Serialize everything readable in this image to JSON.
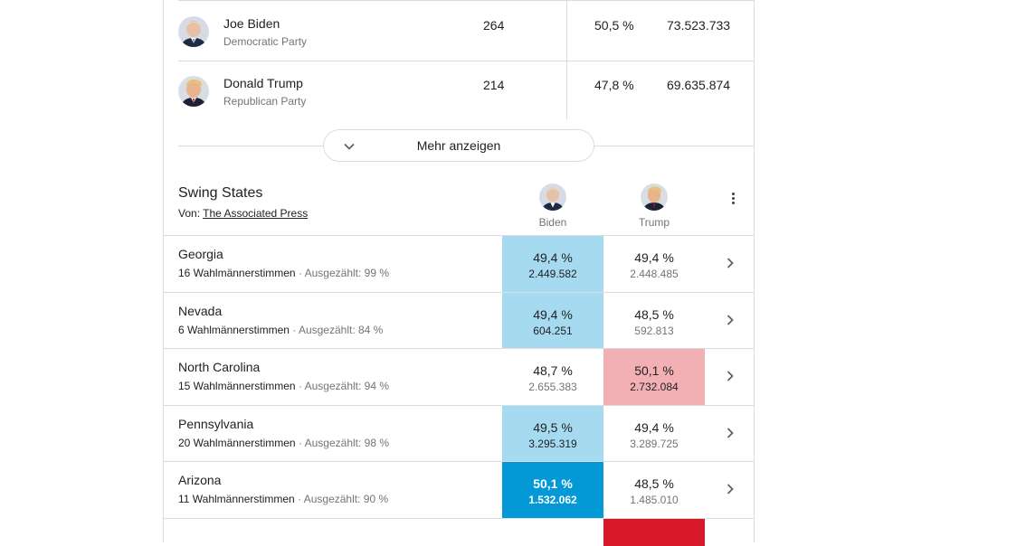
{
  "candidates": [
    {
      "name": "Joe Biden",
      "party": "Democratic Party",
      "electoral": "264",
      "percent": "50,5 %",
      "votes": "73.523.733",
      "color": "#1a73e8"
    },
    {
      "name": "Donald Trump",
      "party": "Republican Party",
      "electoral": "214",
      "percent": "47,8 %",
      "votes": "69.635.874",
      "color": "#d7192a"
    }
  ],
  "more_button": {
    "label": "Mehr anzeigen",
    "icon": "chevron-down-icon"
  },
  "swing": {
    "title": "Swing States",
    "source_prefix": "Von: ",
    "source_link": "The Associated Press",
    "col_biden": "Biden",
    "col_trump": "Trump",
    "menu_icon": "more-vert-icon",
    "states": [
      {
        "name": "Georgia",
        "electors": "16 Wahlmännerstimmen",
        "sep": " · ",
        "counted": "Ausgezählt: 99 %",
        "biden_pct": "49,4 %",
        "biden_votes": "2.449.582",
        "trump_pct": "49,4 %",
        "trump_votes": "2.448.485",
        "leader": "biden",
        "called": false
      },
      {
        "name": "Nevada",
        "electors": "6 Wahlmännerstimmen",
        "sep": " · ",
        "counted": "Ausgezählt: 84 %",
        "biden_pct": "49,4 %",
        "biden_votes": "604.251",
        "trump_pct": "48,5 %",
        "trump_votes": "592.813",
        "leader": "biden",
        "called": false
      },
      {
        "name": "North Carolina",
        "electors": "15 Wahlmännerstimmen",
        "sep": " · ",
        "counted": "Ausgezählt: 94 %",
        "biden_pct": "48,7 %",
        "biden_votes": "2.655.383",
        "trump_pct": "50,1 %",
        "trump_votes": "2.732.084",
        "leader": "trump",
        "called": false
      },
      {
        "name": "Pennsylvania",
        "electors": "20 Wahlmännerstimmen",
        "sep": " · ",
        "counted": "Ausgezählt: 98 %",
        "biden_pct": "49,5 %",
        "biden_votes": "3.295.319",
        "trump_pct": "49,4 %",
        "trump_votes": "3.289.725",
        "leader": "biden",
        "called": false
      },
      {
        "name": "Arizona",
        "electors": "11 Wahlmännerstimmen",
        "sep": " · ",
        "counted": "Ausgezählt: 90 %",
        "biden_pct": "50,1 %",
        "biden_votes": "1.532.062",
        "trump_pct": "48,5 %",
        "trump_votes": "1.485.010",
        "leader": "biden",
        "called": true
      }
    ]
  }
}
